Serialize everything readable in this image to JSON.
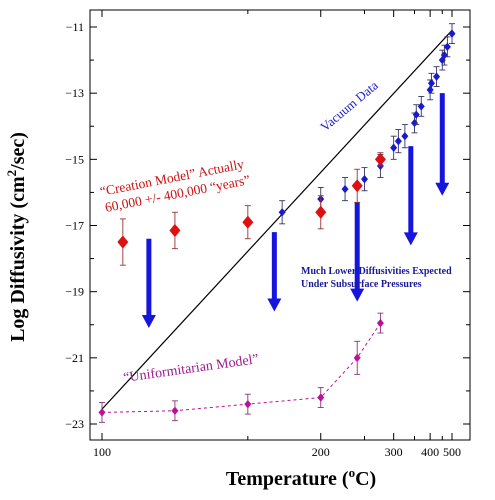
{
  "chart_data": {
    "type": "scatter",
    "title": "",
    "xlabel": "Temperature (°C)",
    "xlabel_parts": {
      "main": "Temperature (",
      "sup": "o",
      "rest": "C)"
    },
    "ylabel": "Log Diffusivity (cm²/sec)",
    "ylabel_parts": {
      "main": "Log Diffusivity (cm",
      "sup": "2",
      "rest": "/sec)"
    },
    "x_scale": "reciprocal",
    "xlim": [
      95,
      500
    ],
    "ylim": [
      -23,
      -10.6
    ],
    "x_ticks": [
      100,
      200,
      300,
      400,
      500
    ],
    "x_minor_ticks": [
      150,
      250,
      350,
      450
    ],
    "y_ticks": [
      -23,
      -21,
      -19,
      -17,
      -15,
      -13,
      -11
    ],
    "grid": false,
    "colors": {
      "vacuum": "#1a1acc",
      "creation": "#dd1111",
      "uniformitarian": "#bb1199",
      "arrows": "#1515dd",
      "line": "#000000"
    },
    "series": [
      {
        "name": "Vacuum Data",
        "marker": "diamond",
        "points": [
          {
            "x": 170,
            "y": -16.6,
            "err": 0.35
          },
          {
            "x": 200,
            "y": -16.2,
            "err": 0.35
          },
          {
            "x": 225,
            "y": -15.9,
            "err": 0.35
          },
          {
            "x": 250,
            "y": -15.6,
            "err": 0.35
          },
          {
            "x": 275,
            "y": -15.2,
            "err": 0.35
          },
          {
            "x": 300,
            "y": -14.65,
            "err": 0.35
          },
          {
            "x": 310,
            "y": -14.45,
            "err": 0.35
          },
          {
            "x": 325,
            "y": -14.3,
            "err": 0.35
          },
          {
            "x": 350,
            "y": -13.9,
            "err": 0.3
          },
          {
            "x": 355,
            "y": -13.65,
            "err": 0.3
          },
          {
            "x": 370,
            "y": -13.4,
            "err": 0.3
          },
          {
            "x": 400,
            "y": -12.9,
            "err": 0.3
          },
          {
            "x": 405,
            "y": -12.7,
            "err": 0.3
          },
          {
            "x": 425,
            "y": -12.5,
            "err": 0.3
          },
          {
            "x": 450,
            "y": -12.0,
            "err": 0.3
          },
          {
            "x": 460,
            "y": -11.85,
            "err": 0.3
          },
          {
            "x": 475,
            "y": -11.6,
            "err": 0.3
          },
          {
            "x": 500,
            "y": -11.2,
            "err": 0.3
          }
        ]
      },
      {
        "name": "\"Creation Model\" Actually 60,000 +/- 400,000 \"years\"",
        "marker": "diamond",
        "points": [
          {
            "x": 105,
            "y": -17.5,
            "err": 0.7
          },
          {
            "x": 120,
            "y": -17.15,
            "err": 0.55
          },
          {
            "x": 150,
            "y": -16.9,
            "err": 0.5
          },
          {
            "x": 200,
            "y": -16.6,
            "err": 0.5
          },
          {
            "x": 240,
            "y": -15.8,
            "err": 0.5
          },
          {
            "x": 275,
            "y": -15.0,
            "err": 0.2
          }
        ]
      },
      {
        "name": "\"Uniformitarian Model\"",
        "marker": "diamond",
        "dashed": true,
        "points": [
          {
            "x": 100,
            "y": -22.65,
            "err": 0.3
          },
          {
            "x": 120,
            "y": -22.6,
            "err": 0.3
          },
          {
            "x": 150,
            "y": -22.4,
            "err": 0.3
          },
          {
            "x": 200,
            "y": -22.2,
            "err": 0.3
          },
          {
            "x": 240,
            "y": -21.0,
            "err": 0.5
          },
          {
            "x": 275,
            "y": -19.95,
            "err": 0.3
          }
        ]
      }
    ],
    "fit_line": {
      "from": {
        "x": 100,
        "y": -22.55
      },
      "to": {
        "x": 500,
        "y": -11.1
      }
    },
    "arrows": [
      {
        "x": 112,
        "y_from": -17.4,
        "y_to": -20.1
      },
      {
        "x": 165,
        "y_from": -17.2,
        "y_to": -19.6
      },
      {
        "x": 240,
        "y_from": -16.3,
        "y_to": -19.3
      },
      {
        "x": 340,
        "y_from": -14.6,
        "y_to": -17.6
      },
      {
        "x": 450,
        "y_from": -13.0,
        "y_to": -16.1
      }
    ],
    "annotations": {
      "vacuum_label": "Vacuum Data",
      "creation_line1": "“Creation Model” Actually",
      "creation_line2": "60,000 +/- 400,000 “years”",
      "pressure_line1": "Much Lower Diffusivities Expected",
      "pressure_line2": "Under Subsurface Pressures",
      "uniformitarian_label": "“Uniformitarian Model”"
    }
  }
}
